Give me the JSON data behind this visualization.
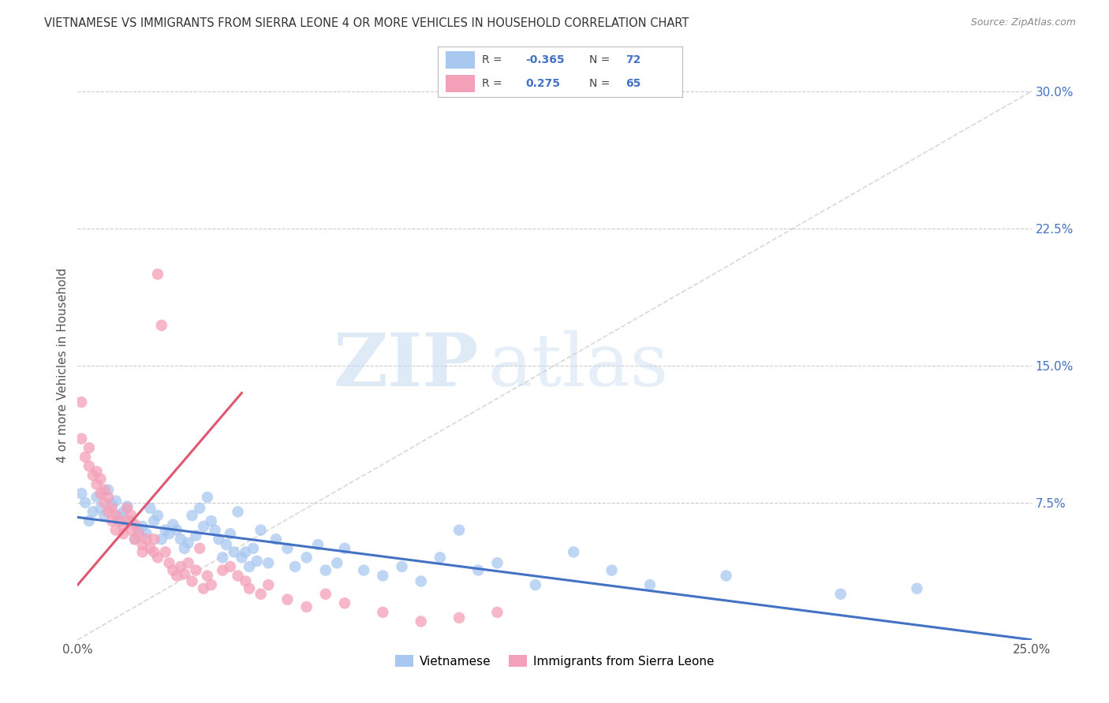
{
  "title": "VIETNAMESE VS IMMIGRANTS FROM SIERRA LEONE 4 OR MORE VEHICLES IN HOUSEHOLD CORRELATION CHART",
  "source": "Source: ZipAtlas.com",
  "ylabel": "4 or more Vehicles in Household",
  "xmin": 0.0,
  "xmax": 0.25,
  "ymin": 0.0,
  "ymax": 0.3,
  "legend_r_blue": "-0.365",
  "legend_n_blue": "72",
  "legend_r_pink": "0.275",
  "legend_n_pink": "65",
  "blue_color": "#A8C8F0",
  "pink_color": "#F4A0B8",
  "trendline_blue_color": "#4472C4",
  "trendline_pink_color": "#E05870",
  "trendline_gray_color": "#C8C8C8",
  "watermark_zip": "ZIP",
  "watermark_atlas": "atlas",
  "blue_scatter": [
    [
      0.001,
      0.08
    ],
    [
      0.002,
      0.075
    ],
    [
      0.003,
      0.065
    ],
    [
      0.004,
      0.07
    ],
    [
      0.005,
      0.078
    ],
    [
      0.006,
      0.072
    ],
    [
      0.007,
      0.068
    ],
    [
      0.008,
      0.082
    ],
    [
      0.009,
      0.074
    ],
    [
      0.01,
      0.076
    ],
    [
      0.011,
      0.068
    ],
    [
      0.012,
      0.07
    ],
    [
      0.013,
      0.073
    ],
    [
      0.014,
      0.065
    ],
    [
      0.015,
      0.055
    ],
    [
      0.016,
      0.06
    ],
    [
      0.017,
      0.062
    ],
    [
      0.018,
      0.058
    ],
    [
      0.019,
      0.072
    ],
    [
      0.02,
      0.065
    ],
    [
      0.021,
      0.068
    ],
    [
      0.022,
      0.055
    ],
    [
      0.023,
      0.06
    ],
    [
      0.024,
      0.058
    ],
    [
      0.025,
      0.063
    ],
    [
      0.026,
      0.06
    ],
    [
      0.027,
      0.055
    ],
    [
      0.028,
      0.05
    ],
    [
      0.029,
      0.053
    ],
    [
      0.03,
      0.068
    ],
    [
      0.031,
      0.057
    ],
    [
      0.032,
      0.072
    ],
    [
      0.033,
      0.062
    ],
    [
      0.034,
      0.078
    ],
    [
      0.035,
      0.065
    ],
    [
      0.036,
      0.06
    ],
    [
      0.037,
      0.055
    ],
    [
      0.038,
      0.045
    ],
    [
      0.039,
      0.052
    ],
    [
      0.04,
      0.058
    ],
    [
      0.041,
      0.048
    ],
    [
      0.042,
      0.07
    ],
    [
      0.043,
      0.045
    ],
    [
      0.044,
      0.048
    ],
    [
      0.045,
      0.04
    ],
    [
      0.046,
      0.05
    ],
    [
      0.047,
      0.043
    ],
    [
      0.048,
      0.06
    ],
    [
      0.05,
      0.042
    ],
    [
      0.052,
      0.055
    ],
    [
      0.055,
      0.05
    ],
    [
      0.057,
      0.04
    ],
    [
      0.06,
      0.045
    ],
    [
      0.063,
      0.052
    ],
    [
      0.065,
      0.038
    ],
    [
      0.068,
      0.042
    ],
    [
      0.07,
      0.05
    ],
    [
      0.075,
      0.038
    ],
    [
      0.08,
      0.035
    ],
    [
      0.085,
      0.04
    ],
    [
      0.09,
      0.032
    ],
    [
      0.095,
      0.045
    ],
    [
      0.1,
      0.06
    ],
    [
      0.105,
      0.038
    ],
    [
      0.11,
      0.042
    ],
    [
      0.12,
      0.03
    ],
    [
      0.13,
      0.048
    ],
    [
      0.14,
      0.038
    ],
    [
      0.15,
      0.03
    ],
    [
      0.17,
      0.035
    ],
    [
      0.2,
      0.025
    ],
    [
      0.22,
      0.028
    ]
  ],
  "pink_scatter": [
    [
      0.001,
      0.13
    ],
    [
      0.001,
      0.11
    ],
    [
      0.002,
      0.1
    ],
    [
      0.003,
      0.095
    ],
    [
      0.003,
      0.105
    ],
    [
      0.004,
      0.09
    ],
    [
      0.005,
      0.092
    ],
    [
      0.005,
      0.085
    ],
    [
      0.006,
      0.088
    ],
    [
      0.006,
      0.08
    ],
    [
      0.007,
      0.075
    ],
    [
      0.007,
      0.082
    ],
    [
      0.008,
      0.07
    ],
    [
      0.008,
      0.078
    ],
    [
      0.009,
      0.072
    ],
    [
      0.009,
      0.065
    ],
    [
      0.01,
      0.068
    ],
    [
      0.01,
      0.06
    ],
    [
      0.011,
      0.065
    ],
    [
      0.012,
      0.062
    ],
    [
      0.012,
      0.058
    ],
    [
      0.013,
      0.072
    ],
    [
      0.013,
      0.065
    ],
    [
      0.014,
      0.068
    ],
    [
      0.014,
      0.06
    ],
    [
      0.015,
      0.055
    ],
    [
      0.015,
      0.063
    ],
    [
      0.016,
      0.058
    ],
    [
      0.017,
      0.052
    ],
    [
      0.017,
      0.048
    ],
    [
      0.018,
      0.055
    ],
    [
      0.019,
      0.05
    ],
    [
      0.02,
      0.048
    ],
    [
      0.02,
      0.055
    ],
    [
      0.021,
      0.045
    ],
    [
      0.021,
      0.2
    ],
    [
      0.022,
      0.172
    ],
    [
      0.023,
      0.048
    ],
    [
      0.024,
      0.042
    ],
    [
      0.025,
      0.038
    ],
    [
      0.026,
      0.035
    ],
    [
      0.027,
      0.04
    ],
    [
      0.028,
      0.036
    ],
    [
      0.029,
      0.042
    ],
    [
      0.03,
      0.032
    ],
    [
      0.031,
      0.038
    ],
    [
      0.032,
      0.05
    ],
    [
      0.033,
      0.028
    ],
    [
      0.034,
      0.035
    ],
    [
      0.035,
      0.03
    ],
    [
      0.038,
      0.038
    ],
    [
      0.04,
      0.04
    ],
    [
      0.042,
      0.035
    ],
    [
      0.044,
      0.032
    ],
    [
      0.045,
      0.028
    ],
    [
      0.048,
      0.025
    ],
    [
      0.05,
      0.03
    ],
    [
      0.055,
      0.022
    ],
    [
      0.06,
      0.018
    ],
    [
      0.065,
      0.025
    ],
    [
      0.07,
      0.02
    ],
    [
      0.08,
      0.015
    ],
    [
      0.09,
      0.01
    ],
    [
      0.1,
      0.012
    ],
    [
      0.11,
      0.015
    ]
  ],
  "blue_trend_x": [
    0.0,
    0.25
  ],
  "blue_trend_y": [
    0.067,
    0.0
  ],
  "pink_trend_x": [
    0.0,
    0.043
  ],
  "pink_trend_y": [
    0.03,
    0.135
  ],
  "gray_trend_x": [
    0.0,
    0.25
  ],
  "gray_trend_y": [
    0.0,
    0.3
  ]
}
